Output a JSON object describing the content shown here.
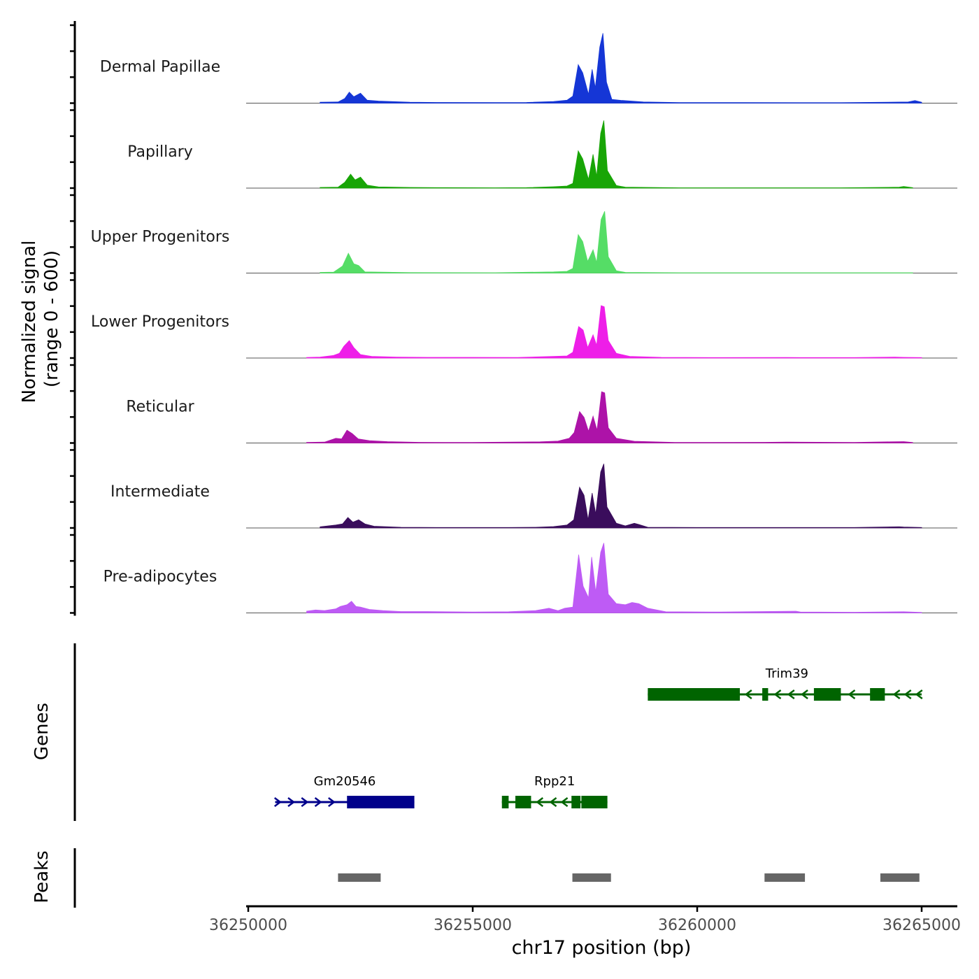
{
  "chart_data": {
    "type": "area",
    "region": {
      "chromosome": "chr17",
      "start": 36250000,
      "end": 36265800
    },
    "xlabel": "chr17 position (bp)",
    "xticks": [
      36250000,
      36255000,
      36260000,
      36265000
    ],
    "xtick_labels": [
      "36250000",
      "36255000",
      "36260000",
      "36265000"
    ],
    "signal_ylabel": [
      "Normalized signal",
      "(range 0 - 600)"
    ],
    "signal_range": [
      0,
      600
    ],
    "genes_label": "Genes",
    "peaks_label": "Peaks",
    "tracks": [
      {
        "name": "Dermal Papillae",
        "color": "#1536d6",
        "points": [
          [
            36251600,
            8
          ],
          [
            36252000,
            10
          ],
          [
            36252150,
            40
          ],
          [
            36252250,
            95
          ],
          [
            36252350,
            55
          ],
          [
            36252500,
            85
          ],
          [
            36252650,
            25
          ],
          [
            36252900,
            18
          ],
          [
            36253600,
            8
          ],
          [
            36254200,
            6
          ],
          [
            36255500,
            5
          ],
          [
            36256200,
            6
          ],
          [
            36256800,
            14
          ],
          [
            36257100,
            25
          ],
          [
            36257230,
            60
          ],
          [
            36257350,
            330
          ],
          [
            36257450,
            260
          ],
          [
            36257580,
            75
          ],
          [
            36257660,
            290
          ],
          [
            36257730,
            130
          ],
          [
            36257830,
            480
          ],
          [
            36257900,
            600
          ],
          [
            36257980,
            180
          ],
          [
            36258100,
            32
          ],
          [
            36258300,
            24
          ],
          [
            36258800,
            10
          ],
          [
            36259600,
            5
          ],
          [
            36261000,
            5
          ],
          [
            36263200,
            4
          ],
          [
            36264700,
            10
          ],
          [
            36264850,
            22
          ],
          [
            36265000,
            8
          ]
        ]
      },
      {
        "name": "Papillary",
        "color": "#18a506",
        "points": [
          [
            36251600,
            6
          ],
          [
            36252000,
            8
          ],
          [
            36252150,
            50
          ],
          [
            36252280,
            120
          ],
          [
            36252380,
            70
          ],
          [
            36252500,
            95
          ],
          [
            36252650,
            25
          ],
          [
            36252900,
            10
          ],
          [
            36253600,
            6
          ],
          [
            36254200,
            4
          ],
          [
            36255500,
            3
          ],
          [
            36256200,
            4
          ],
          [
            36256800,
            12
          ],
          [
            36257100,
            18
          ],
          [
            36257230,
            40
          ],
          [
            36257350,
            320
          ],
          [
            36257450,
            250
          ],
          [
            36257580,
            75
          ],
          [
            36257680,
            290
          ],
          [
            36257760,
            100
          ],
          [
            36257850,
            470
          ],
          [
            36257920,
            580
          ],
          [
            36258000,
            150
          ],
          [
            36258200,
            22
          ],
          [
            36258400,
            8
          ],
          [
            36259600,
            3
          ],
          [
            36261000,
            3
          ],
          [
            36263200,
            3
          ],
          [
            36264500,
            8
          ],
          [
            36264600,
            14
          ],
          [
            36264800,
            4
          ]
        ]
      },
      {
        "name": "Upper Progenitors",
        "color": "#55dd66",
        "points": [
          [
            36251600,
            6
          ],
          [
            36251900,
            8
          ],
          [
            36252100,
            60
          ],
          [
            36252230,
            170
          ],
          [
            36252350,
            80
          ],
          [
            36252460,
            65
          ],
          [
            36252600,
            10
          ],
          [
            36253600,
            4
          ],
          [
            36255500,
            3
          ],
          [
            36256800,
            10
          ],
          [
            36257100,
            15
          ],
          [
            36257230,
            40
          ],
          [
            36257350,
            330
          ],
          [
            36257450,
            270
          ],
          [
            36257560,
            100
          ],
          [
            36257680,
            200
          ],
          [
            36257760,
            90
          ],
          [
            36257860,
            460
          ],
          [
            36257940,
            530
          ],
          [
            36258020,
            140
          ],
          [
            36258200,
            20
          ],
          [
            36258400,
            6
          ],
          [
            36259600,
            3
          ],
          [
            36261000,
            3
          ],
          [
            36263200,
            3
          ],
          [
            36264800,
            3
          ]
        ]
      },
      {
        "name": "Lower Progenitors",
        "color": "#ee1ee8",
        "points": [
          [
            36251300,
            5
          ],
          [
            36251600,
            8
          ],
          [
            36251900,
            22
          ],
          [
            36252030,
            40
          ],
          [
            36252130,
            100
          ],
          [
            36252250,
            150
          ],
          [
            36252350,
            90
          ],
          [
            36252500,
            30
          ],
          [
            36252750,
            14
          ],
          [
            36253300,
            8
          ],
          [
            36254000,
            6
          ],
          [
            36255000,
            6
          ],
          [
            36256000,
            5
          ],
          [
            36256800,
            14
          ],
          [
            36257100,
            18
          ],
          [
            36257230,
            50
          ],
          [
            36257360,
            270
          ],
          [
            36257460,
            240
          ],
          [
            36257560,
            90
          ],
          [
            36257680,
            200
          ],
          [
            36257760,
            110
          ],
          [
            36257860,
            450
          ],
          [
            36257930,
            440
          ],
          [
            36258020,
            150
          ],
          [
            36258200,
            40
          ],
          [
            36258500,
            14
          ],
          [
            36259200,
            6
          ],
          [
            36260500,
            4
          ],
          [
            36262000,
            5
          ],
          [
            36263500,
            4
          ],
          [
            36264400,
            8
          ],
          [
            36264600,
            6
          ],
          [
            36265000,
            4
          ]
        ]
      },
      {
        "name": "Reticular",
        "color": "#ad13a8",
        "points": [
          [
            36251300,
            5
          ],
          [
            36251700,
            8
          ],
          [
            36251950,
            40
          ],
          [
            36252080,
            35
          ],
          [
            36252200,
            110
          ],
          [
            36252320,
            80
          ],
          [
            36252450,
            35
          ],
          [
            36252700,
            20
          ],
          [
            36253100,
            12
          ],
          [
            36253800,
            6
          ],
          [
            36255000,
            5
          ],
          [
            36256500,
            10
          ],
          [
            36256900,
            16
          ],
          [
            36257150,
            40
          ],
          [
            36257260,
            90
          ],
          [
            36257380,
            270
          ],
          [
            36257480,
            220
          ],
          [
            36257580,
            100
          ],
          [
            36257680,
            230
          ],
          [
            36257770,
            110
          ],
          [
            36257870,
            440
          ],
          [
            36257940,
            430
          ],
          [
            36258020,
            130
          ],
          [
            36258200,
            40
          ],
          [
            36258600,
            15
          ],
          [
            36259500,
            5
          ],
          [
            36261500,
            6
          ],
          [
            36262000,
            8
          ],
          [
            36263500,
            5
          ],
          [
            36264300,
            10
          ],
          [
            36264600,
            12
          ],
          [
            36264800,
            5
          ]
        ]
      },
      {
        "name": "Intermediate",
        "color": "#3a0d5c",
        "points": [
          [
            36251600,
            10
          ],
          [
            36251950,
            25
          ],
          [
            36252100,
            35
          ],
          [
            36252220,
            90
          ],
          [
            36252330,
            50
          ],
          [
            36252460,
            70
          ],
          [
            36252600,
            35
          ],
          [
            36252800,
            15
          ],
          [
            36253400,
            6
          ],
          [
            36254200,
            4
          ],
          [
            36255800,
            4
          ],
          [
            36256400,
            6
          ],
          [
            36256800,
            12
          ],
          [
            36257100,
            25
          ],
          [
            36257250,
            70
          ],
          [
            36257380,
            350
          ],
          [
            36257480,
            280
          ],
          [
            36257570,
            70
          ],
          [
            36257660,
            300
          ],
          [
            36257740,
            120
          ],
          [
            36257850,
            480
          ],
          [
            36257920,
            550
          ],
          [
            36257990,
            180
          ],
          [
            36258200,
            40
          ],
          [
            36258400,
            18
          ],
          [
            36258600,
            40
          ],
          [
            36258700,
            30
          ],
          [
            36258900,
            6
          ],
          [
            36260000,
            4
          ],
          [
            36261500,
            4
          ],
          [
            36263500,
            4
          ],
          [
            36264500,
            10
          ],
          [
            36264600,
            8
          ],
          [
            36265000,
            4
          ]
        ]
      },
      {
        "name": "Pre-adipocytes",
        "color": "#be5bf5",
        "points": [
          [
            36251300,
            15
          ],
          [
            36251500,
            25
          ],
          [
            36251700,
            20
          ],
          [
            36251950,
            35
          ],
          [
            36252050,
            55
          ],
          [
            36252200,
            70
          ],
          [
            36252300,
            100
          ],
          [
            36252400,
            55
          ],
          [
            36252500,
            50
          ],
          [
            36252700,
            30
          ],
          [
            36253000,
            20
          ],
          [
            36253400,
            12
          ],
          [
            36254000,
            12
          ],
          [
            36255000,
            8
          ],
          [
            36255800,
            10
          ],
          [
            36256400,
            20
          ],
          [
            36256700,
            40
          ],
          [
            36256900,
            20
          ],
          [
            36257050,
            40
          ],
          [
            36257230,
            50
          ],
          [
            36257360,
            500
          ],
          [
            36257460,
            230
          ],
          [
            36257580,
            130
          ],
          [
            36257650,
            480
          ],
          [
            36257740,
            180
          ],
          [
            36257850,
            520
          ],
          [
            36257920,
            600
          ],
          [
            36258020,
            160
          ],
          [
            36258200,
            80
          ],
          [
            36258400,
            70
          ],
          [
            36258550,
            90
          ],
          [
            36258700,
            80
          ],
          [
            36258900,
            40
          ],
          [
            36259300,
            10
          ],
          [
            36260500,
            8
          ],
          [
            36262200,
            15
          ],
          [
            36262300,
            8
          ],
          [
            36263500,
            6
          ],
          [
            36264600,
            10
          ],
          [
            36265000,
            5
          ]
        ]
      }
    ],
    "genes": [
      {
        "name": "Trim39",
        "strand": "-",
        "color": "#006400",
        "start": 36258900,
        "end": 36265000,
        "exons": [
          [
            36258900,
            36260950
          ],
          [
            36261450,
            36261580
          ],
          [
            36262600,
            36263200
          ],
          [
            36263850,
            36264180
          ]
        ],
        "arrows": [
          36261150,
          36261800,
          36262100,
          36262400,
          36263450,
          36264450,
          36264700,
          36264950
        ]
      },
      {
        "name": "Gm20546",
        "strand": "+",
        "color": "#00008b",
        "start": 36250600,
        "end": 36253700,
        "exons": [
          [
            36252200,
            36253700
          ]
        ],
        "arrows": [
          36250650,
          36250950,
          36251250,
          36251550,
          36251850
        ]
      },
      {
        "name": "Rpp21",
        "strand": "-",
        "color": "#006400",
        "start": 36255650,
        "end": 36258000,
        "exons": [
          [
            36255650,
            36255800
          ],
          [
            36255950,
            36256300
          ],
          [
            36257200,
            36257400
          ],
          [
            36257420,
            36258000
          ]
        ],
        "arrows": [
          36256500,
          36256800,
          36257050
        ]
      }
    ],
    "peaks": [
      [
        36252000,
        36252950
      ],
      [
        36257220,
        36258080
      ],
      [
        36261500,
        36262400
      ],
      [
        36264080,
        36264950
      ]
    ]
  }
}
